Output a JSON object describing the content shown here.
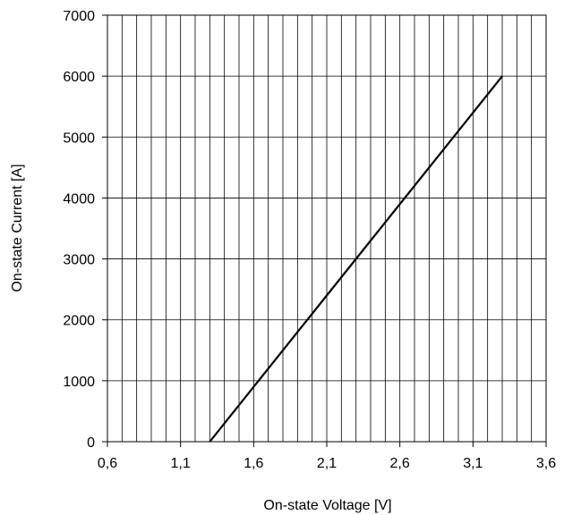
{
  "chart_data": {
    "type": "line",
    "title": "",
    "xlabel": "On-state Voltage [V]",
    "ylabel": "On-state Current [A]",
    "xlim": [
      0.6,
      3.6
    ],
    "ylim": [
      0,
      7000
    ],
    "x_ticks": [
      0.6,
      1.1,
      1.6,
      2.1,
      2.6,
      3.1,
      3.6
    ],
    "x_tick_labels": [
      "0,6",
      "1,1",
      "1,6",
      "2,1",
      "2,6",
      "3,1",
      "3,6"
    ],
    "x_minor_step": 0.1,
    "y_ticks": [
      0,
      1000,
      2000,
      3000,
      4000,
      5000,
      6000,
      7000
    ],
    "y_tick_labels": [
      "0",
      "1000",
      "2000",
      "3000",
      "4000",
      "5000",
      "6000",
      "7000"
    ],
    "grid": true,
    "legend": "none",
    "series": [
      {
        "color": "#000000",
        "x": [
          1.3,
          3.3
        ],
        "y": [
          0,
          6000
        ]
      }
    ]
  }
}
